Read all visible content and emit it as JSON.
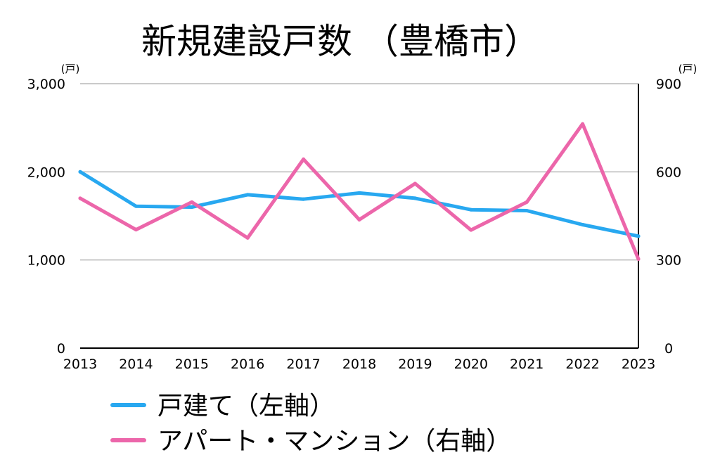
{
  "chart_data": {
    "type": "line",
    "title": "新規建設戸数 （豊橋市）",
    "x": [
      "2013",
      "2014",
      "2015",
      "2016",
      "2017",
      "2018",
      "2019",
      "2020",
      "2021",
      "2022",
      "2023"
    ],
    "left_axis": {
      "unit": "(戸)",
      "range": [
        0,
        3000
      ],
      "ticks": [
        "0",
        "1,000",
        "2,000",
        "3,000"
      ],
      "tick_values": [
        0,
        1000,
        2000,
        3000
      ]
    },
    "right_axis": {
      "unit": "(戸)",
      "range": [
        0,
        900
      ],
      "ticks": [
        "0",
        "300",
        "600",
        "900"
      ],
      "tick_values": [
        0,
        300,
        600,
        900
      ]
    },
    "grid": true,
    "legend_position": "bottom-left",
    "series": [
      {
        "name": "戸建て（左軸）",
        "axis": "left",
        "color": "#28a8f0",
        "values": [
          2000,
          1610,
          1600,
          1740,
          1690,
          1760,
          1700,
          1570,
          1560,
          1400,
          1270
        ]
      },
      {
        "name": "アパート・マンション（右軸）",
        "axis": "right",
        "color": "#ec66aa",
        "values": [
          510,
          403,
          497,
          375,
          643,
          437,
          560,
          402,
          497,
          763,
          303
        ]
      }
    ]
  }
}
